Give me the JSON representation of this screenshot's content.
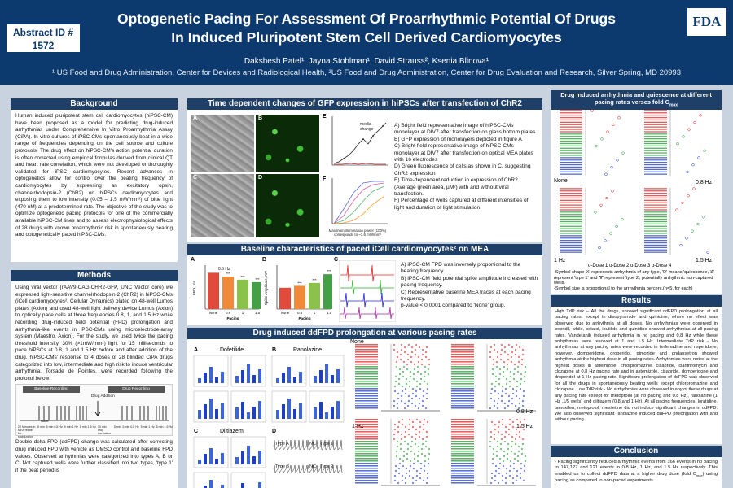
{
  "header": {
    "abstract_line1": "Abstract ID #",
    "abstract_line2": "1572",
    "title_line1": "Optogenetic Pacing For Assessment Of Proarrhythmic Potential Of Drugs",
    "title_line2": "In Induced Pluripotent Stem Cell Derived Cardiomyocytes",
    "authors": "Dakshesh Patel¹, Jayna Stohlman¹, David Strauss², Ksenia Blinova¹",
    "affiliations": "¹ US Food and Drug Administration, Center for Devices and Radiological Health, ²US Food and Drug Administration, Center for Drug Evaluation and Research, Silver Spring, MD 20993",
    "logo": "FDA"
  },
  "background": {
    "heading": "Background",
    "text": "Human induced pluripotent stem cell cardiomyocytes (hiPSC-CM) have been proposed as a model for predicting drug-induced arrhythmias under Comprehensive In Vitro Proarrhythmia Assay (CiPA). In vitro cultures of iPSC-CMs spontaneously beat in a wide range of frequencies depending on the cell source and culture protocols. The drug effect on hiPSC-CM's action potential duration is often corrected using empirical formulas derived from clinical QT and heart rate correlation, which were not developed or thoroughly validated for iPSC cardiomyocytes. Recent advances in optogenetics allow for control over the beating frequency of cardiomyocytes by expressing an excitatory opsin, channelrhodopsin-2 (ChR2) on hiPSCs cardiomyocytes and exposing them to low intensity (0.05 – 1.5 mW/mm²) of blue light (470 nM) at a predetermined rate. The objective of the study was to optimize optogenetic pacing protocols for one of the commercially available hiPSC-CM lines and to assess electrophysiological effects of 28 drugs with known proarrhythmic risk in spontaneously beating and optogenetically paced hiPSC-CMs."
  },
  "methods": {
    "heading": "Methods",
    "text": "Using viral vector (rAAV9-CAG-CHR2-GFP, UNC Vector core) we expressed light-sensitive channelrhodopsin-2 (ChR2) in hiPSC-CMs (iCell cardiomyocytes², Cellular Dynamics) plated on 48-well Lumos plates (Axion) and used 48-well light delivery device Lumos (Axion) to optically pace cells at three frequencies 0.8, 1, and 1.5 Hz while recording drug-induced field potential (FPD) prolongation and arrhythmia-like events in iPSC-CMs using microelectrode-array system (Maestro, Axion). For the study, we used twice the pacing threshold intensity, 30% (>1mW/mm²) light for 15 milliseconds to pace hiPSCs at 0.8, 1 and 1.5 Hz before and after addition of the drug. hiPSC-CMs' response to 4 doses of 28 blinded CiPA drugs categorized into low, intermediate and high risk to induce ventricular arrhythmia, Torsade de Pointes, were recorded following the protocol below:",
    "protocol_baseline": "Baseline Recording",
    "protocol_drug_rec": "Drug Recording",
    "protocol_drug_add": "Drug Addition",
    "protocol_steps": [
      "20 Minutes in MEA reader for stabilization",
      "5 min",
      "5 min 0.8 Hz",
      "5 min 1 Hz",
      "5 min 1.5 Hz",
      "30 min drug incubation",
      "5 min",
      "5 min 0.8 Hz",
      "5 min 1 Hz",
      "5 min 1.5 Hz"
    ],
    "protocol_none": "None",
    "text2": "Double delta FPD (ddFPD) change was calculated after correcting drug induced FPD with vehicle as DMSO control and baseline FPD values. Observed arrhythmias were categorized into types A, B or C. Not captured wells were further classified into two types, 'type 1' if the beat period is"
  },
  "gfp": {
    "heading": "Time dependent changes of GFP expression in hiPSCs after transfection of ChR2",
    "panel_letters": [
      "A",
      "B",
      "C",
      "D",
      "E",
      "F"
    ],
    "legend": [
      "A) Bright field representative image of hiPSC-CMs monolayer at DIV7 after transfection on glass bottom plates",
      "B) GFP expression of monolayers depicted in figure A",
      "C) Bright field representative image of hiPSC-CMs monolayer at DIV7 after transfection on optical MEA plates with 16 electrodes",
      "D) Green fluorescence of cells as shown in C, suggesting ChR2 expression",
      "E) Time-dependent reduction in expression of ChR2 (Average green area, µM²) with and without viral transfection.",
      "F) Percentage of wells captured at different intensities of light and duration of light stimulation."
    ],
    "e_annotation": "media change",
    "f_xlabel": "Maximum illumination power (100%) corresponds to ~3.6 mW/mm²"
  },
  "baseline": {
    "heading": "Baseline characteristics of paced iCell cardiomyocytes² on MEA",
    "panel_letters": [
      "A",
      "B",
      "C"
    ],
    "a_ylabel": "FPD, ms",
    "b_ylabel": "Spike Amplitude, mV",
    "x_title": "Pacing",
    "a_annotation": "0.5 Hz",
    "categories": [
      "None",
      "0.8",
      "1",
      "1.5"
    ],
    "fpd_ms": [
      580,
      520,
      470,
      430
    ],
    "spike_mv": [
      1.1,
      1.2,
      1.35,
      1.8
    ],
    "sig": "***",
    "legend": [
      "A) iPSC-CM FPD was inversely proportional to the beating frequency",
      "B) iPSC-CM field potential spike amplitude increased with pacing frequency.",
      "C) Representative baseline MEA traces at each pacing frequency.",
      "p-value < 0.0001 compared to 'None' group."
    ]
  },
  "ddfpd": {
    "heading": "Drug induced ddFPD prolongation at various pacing rates",
    "drugs": [
      "A",
      "Dofetilide",
      "B",
      "Ranolazine",
      "C",
      "Diltiazem",
      "D"
    ],
    "rate_none": "None",
    "rate_08": "0.8 Hz",
    "rate_1": "1 Hz",
    "rate_15": "1.5 Hz",
    "d_labels": [
      "Type A",
      "Type B",
      "NC - Type 1",
      "NC - Type 2"
    ],
    "axis_label": "ddFPD"
  },
  "arrhythmia": {
    "heading": "Drug induced arrhythmia and quiescence at different pacing rates verses fold C",
    "heading_sub": "max",
    "rate_labels": [
      "None",
      "0.8 Hz",
      "1 Hz",
      "1.5 Hz"
    ],
    "dose_legend": "o-Dose 1  o-Dose 2  o-Dose 3  o-Dose 4",
    "notes": [
      "-Symbol shape 'X' represents arrhythmia of any type, 'O' means 'quiescence, '∆' represent 'type 1' and '∇' represent 'type 2', potentially arrhythmic non-captured wells.",
      "-Symbol size is proportional to the arrhythmia percent.(n=5, for each)"
    ]
  },
  "results": {
    "heading": "Results",
    "text": "High TdP risk – All the drugs, showed significant ddFPD prolongation at all pacing rates, except in disopyramide and quinidine, where no effect was observed due to arrhythmia at all doses. No arrhythmias were observed in bepridil, while, sotalol, ibutilide and quinidine showed arrhythmias at all pacing rates. Vandetanib induced arrhythmia in no pacing and 0.8 Hz while these arrhythmias were resolved at 1 and 1.5 Hz. Intermediate TdP risk - No arrhythmias at any pacing rates were recorded in terfenadine and risperidone, however, domperidone, droperidol, pimozide and ondansetron showed arrhythmia at the highest dose in all pacing rates. Arrhythmias were noted at the highest doses in astemizole, chlorpromazine, cisapride, clarithromycin and clozapine at 0.8 Hz pacing rate and in astemizole, cisapride, domperidone and droperidol at 1 Hz pacing rate. Significant prolongation of ddFPD was observed for all the drugs in spontaneously beating wells except chlorpromazine and clozapine. Low TdP risk - No arrhythmias were observed in any of these drugs at any pacing rate except for metoprolol (at no pacing and 0.8 Hz), ranolazine (1 Hz ,1/5 wells) and diltiazem (0.8 and 1 Hz). At all pacing frequencies, loratidine, tamoxifen, metoprolol, mexiletine did not induce significant changes in ddFPD. We also observed significant ranolazine induced ddFPD prolongation with and without pacing."
  },
  "conclusion": {
    "heading": "Conclusion",
    "text": "- Pacing significantly reduced arrhythmic events from 166 events in no pacing to 147,127 and 121 events in 0.8 Hz, 1 Hz, and 1.5 Hz respectively. This enabled us to collect ddFPD data at a higher drug dose (fold C",
    "text_sub": "max",
    "text_end": ") using pacing as compared to non-paced experiments."
  }
}
